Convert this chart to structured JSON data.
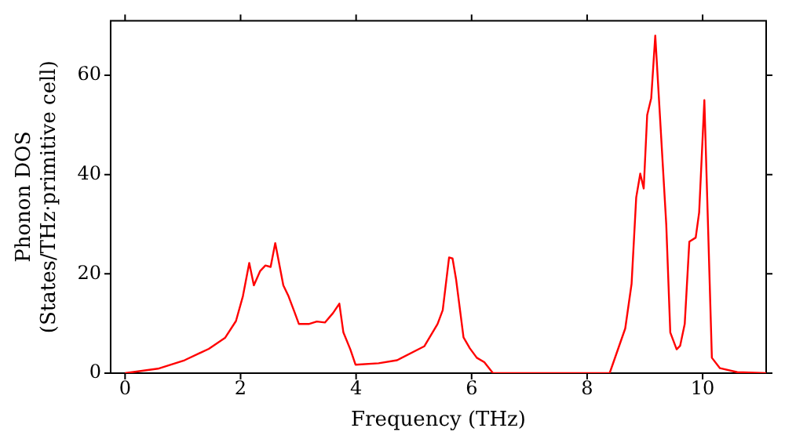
{
  "chart_data": {
    "type": "line",
    "xlabel": "Frequency (THz)",
    "ylabel": "Phonon DOS\n(States/THz·primitive cell)",
    "x": [
      0,
      0.57,
      1.03,
      1.45,
      1.73,
      1.92,
      2.04,
      2.15,
      2.23,
      2.34,
      2.43,
      2.52,
      2.6,
      2.74,
      2.83,
      2.94,
      3.01,
      3.18,
      3.32,
      3.46,
      3.6,
      3.71,
      3.78,
      3.9,
      3.99,
      4.39,
      4.71,
      5.18,
      5.41,
      5.5,
      5.61,
      5.67,
      5.73,
      5.86,
      5.97,
      6.09,
      6.22,
      6.37,
      8.03,
      8.39,
      8.48,
      8.66,
      8.77,
      8.85,
      8.92,
      8.98,
      9.04,
      9.11,
      9.18,
      9.37,
      9.44,
      9.55,
      9.61,
      9.69,
      9.77,
      9.88,
      9.94,
      10.03,
      10.16,
      10.3,
      10.6,
      11.1
    ],
    "series": [
      {
        "color": "#ff0000",
        "values": [
          0,
          0.9,
          2.6,
          4.9,
          7.1,
          10.5,
          15.5,
          22.2,
          17.7,
          20.6,
          21.7,
          21.4,
          26.2,
          17.7,
          15.5,
          12.1,
          9.9,
          9.9,
          10.4,
          10.2,
          12.1,
          14,
          8.2,
          4.8,
          1.7,
          2.0,
          2.6,
          5.4,
          9.9,
          12.7,
          23.3,
          23.1,
          19,
          7.2,
          5,
          3.1,
          2.2,
          0,
          0,
          0,
          3,
          9,
          18,
          35.4,
          40.2,
          37.2,
          52,
          55.4,
          68,
          30,
          8.2,
          4.8,
          5.5,
          9.9,
          26.5,
          27.3,
          32.4,
          55,
          3.1,
          1,
          0.2,
          0
        ]
      }
    ],
    "xlim": [
      -0.25,
      11.1
    ],
    "ylim": [
      0,
      71
    ],
    "xticks": [
      0,
      2,
      4,
      6,
      8,
      10
    ],
    "yticks": [
      0,
      20,
      40,
      60
    ],
    "grid": false,
    "legend": false,
    "marker": "none",
    "line_style": "solid"
  }
}
